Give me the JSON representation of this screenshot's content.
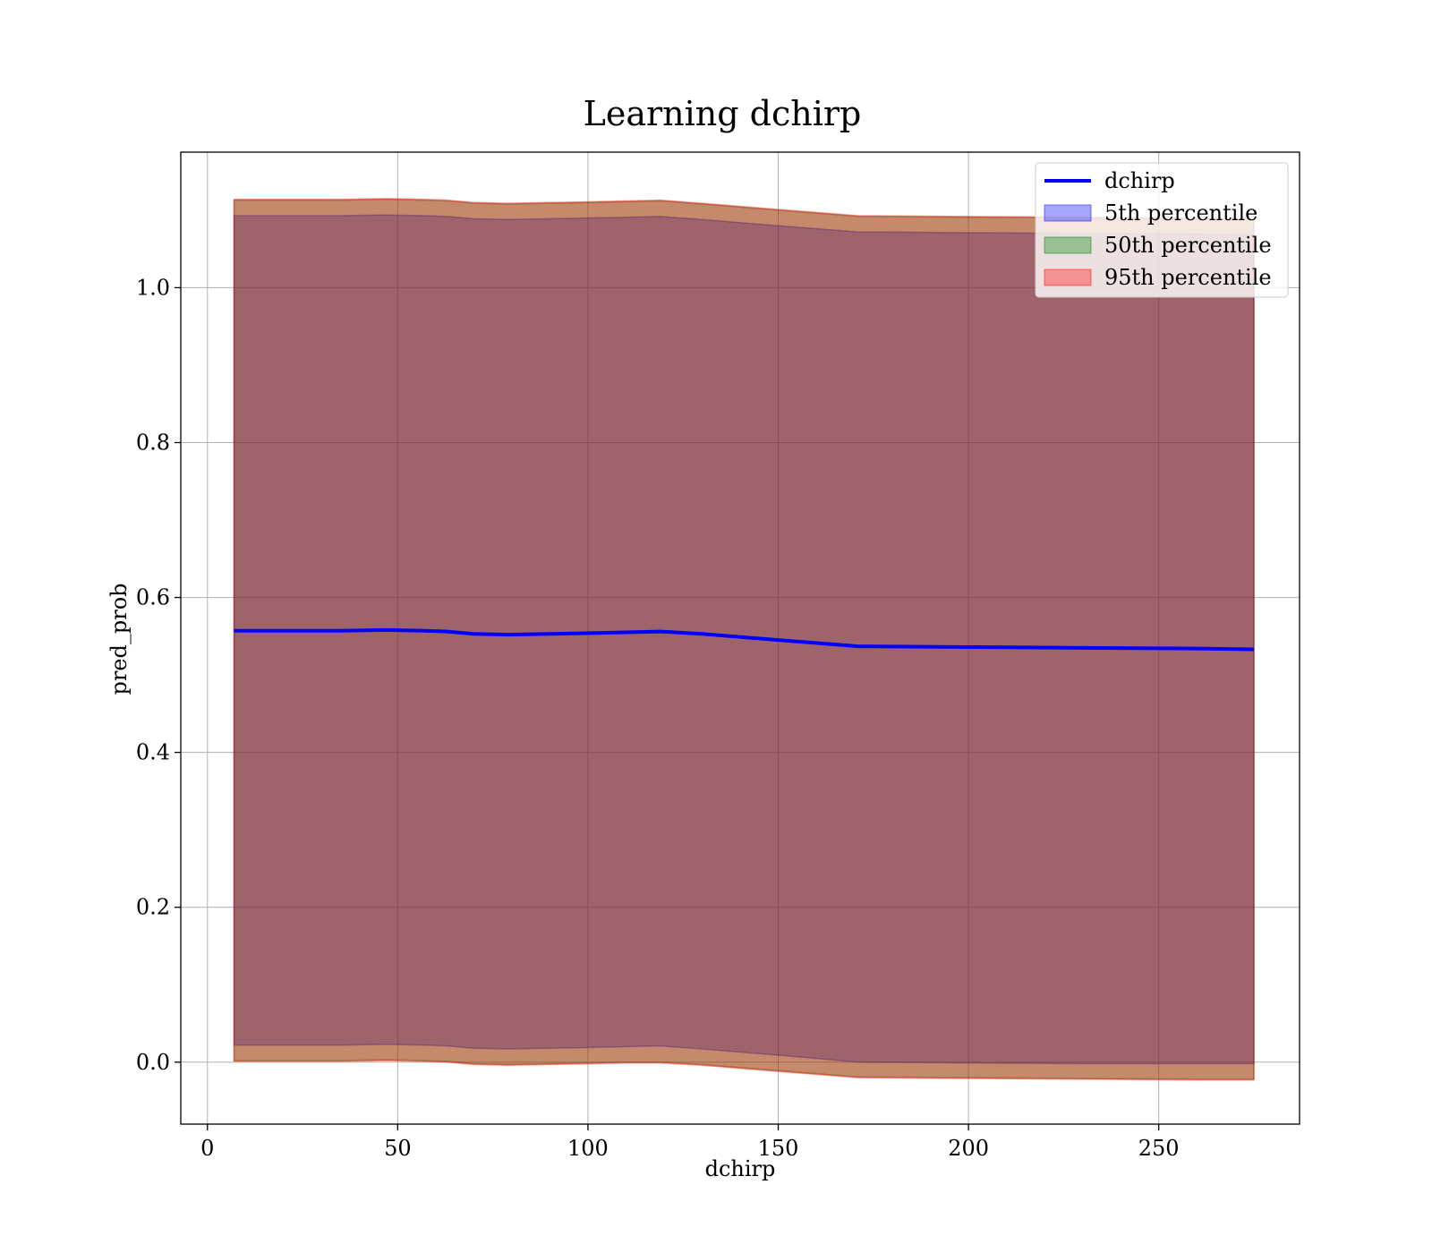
{
  "chart_data": {
    "type": "line",
    "title": "Learning dchirp",
    "xlabel": "dchirp",
    "ylabel": "pred_prob",
    "xlim": [
      -7,
      287
    ],
    "ylim": [
      -0.08,
      1.175
    ],
    "xticks": [
      0,
      50,
      100,
      150,
      200,
      250
    ],
    "xtick_labels": [
      "0",
      "50",
      "100",
      "150",
      "200",
      "250"
    ],
    "yticks": [
      0.0,
      0.2,
      0.4,
      0.6,
      0.8,
      1.0
    ],
    "ytick_labels": [
      "0.0",
      "0.2",
      "0.4",
      "0.6",
      "0.8",
      "1.0"
    ],
    "grid": true,
    "legend_position": "top-right",
    "x": [
      7,
      20,
      35,
      47,
      57,
      63,
      70,
      79,
      90,
      101,
      110,
      119,
      130,
      150,
      171,
      200,
      230,
      260,
      275
    ],
    "series": [
      {
        "name": "dchirp",
        "kind": "line",
        "color": "#0000ff",
        "values": [
          0.557,
          0.557,
          0.557,
          0.558,
          0.557,
          0.556,
          0.553,
          0.552,
          0.553,
          0.554,
          0.555,
          0.556,
          0.553,
          0.545,
          0.537,
          0.536,
          0.535,
          0.534,
          0.533
        ]
      },
      {
        "name": "5th percentile",
        "kind": "band",
        "color": "#0000ff",
        "lower": [
          0.022,
          0.022,
          0.022,
          0.023,
          0.022,
          0.021,
          0.018,
          0.017,
          0.018,
          0.019,
          0.02,
          0.021,
          0.017,
          0.009,
          0.0,
          -0.001,
          -0.002,
          -0.002,
          -0.002
        ],
        "upper": [
          1.093,
          1.093,
          1.093,
          1.094,
          1.093,
          1.092,
          1.089,
          1.088,
          1.089,
          1.09,
          1.091,
          1.092,
          1.088,
          1.08,
          1.072,
          1.071,
          1.07,
          1.069,
          1.068
        ]
      },
      {
        "name": "50th percentile",
        "kind": "band",
        "color": "#008000",
        "lower": [
          0.002,
          0.002,
          0.002,
          0.003,
          0.002,
          0.001,
          -0.002,
          -0.003,
          -0.002,
          -0.001,
          0.0,
          0.0,
          -0.003,
          -0.011,
          -0.019,
          -0.02,
          -0.021,
          -0.022,
          -0.022
        ],
        "upper": [
          1.113,
          1.113,
          1.113,
          1.114,
          1.113,
          1.112,
          1.109,
          1.108,
          1.109,
          1.11,
          1.111,
          1.112,
          1.108,
          1.1,
          1.092,
          1.091,
          1.09,
          1.089,
          1.088
        ]
      },
      {
        "name": "95th percentile",
        "kind": "band",
        "color": "#ff0000",
        "lower": [
          0.001,
          0.001,
          0.001,
          0.002,
          0.001,
          0.0,
          -0.003,
          -0.004,
          -0.003,
          -0.002,
          -0.001,
          -0.001,
          -0.004,
          -0.012,
          -0.02,
          -0.021,
          -0.022,
          -0.023,
          -0.023
        ],
        "upper": [
          1.114,
          1.114,
          1.114,
          1.115,
          1.114,
          1.113,
          1.11,
          1.109,
          1.11,
          1.111,
          1.112,
          1.113,
          1.109,
          1.101,
          1.093,
          1.092,
          1.091,
          1.09,
          1.089
        ]
      }
    ]
  }
}
